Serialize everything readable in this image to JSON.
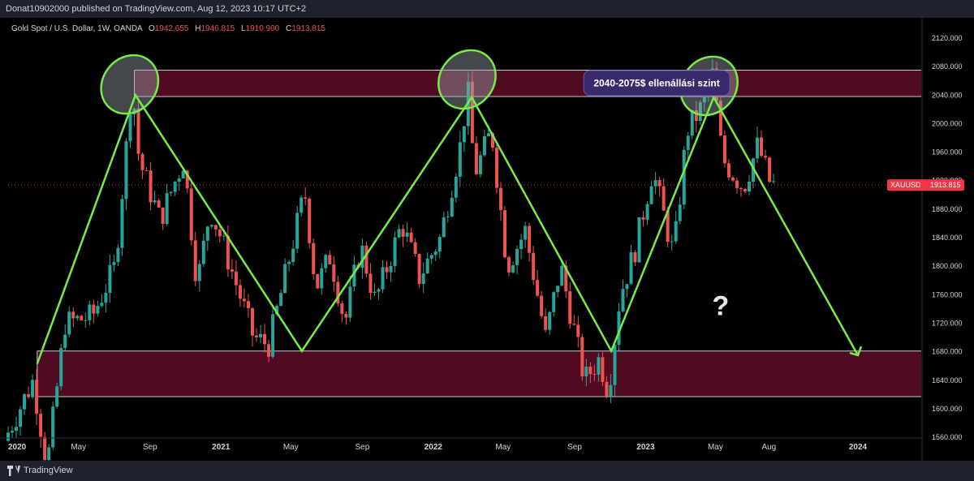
{
  "header": {
    "publisher": "Donat10902000 published on TradingView.com, Aug 12, 2023 10:17 UTC+2"
  },
  "footer": {
    "brand": "TradingView"
  },
  "legend": {
    "symbol": "Gold Spot / U.S. Dollar, 1W, OANDA",
    "o_label": "O",
    "o_value": "1942.655",
    "h_label": "H",
    "h_value": "1946.815",
    "l_label": "L",
    "l_value": "1910.900",
    "c_label": "C",
    "c_value": "1913.815"
  },
  "price_tag": {
    "symbol": "XAUUSD",
    "value": "1913.815",
    "price": 1913.815
  },
  "annotation_text": "2040-2075$ ellenállási szint",
  "question_mark": "?",
  "colors": {
    "background": "#000000",
    "up": "#26a69a",
    "down": "#ef5350",
    "zone_fill": "#5e0d27",
    "trend_line": "#76ee46",
    "price_tag": "#f23645",
    "annotation": "#3a2a6b"
  },
  "chart_data": {
    "type": "candlestick",
    "title": "Gold Spot / U.S. Dollar, 1W, OANDA",
    "ylim": [
      1555,
      2135
    ],
    "y_ticks": [
      {
        "label": "2120.000",
        "value": 2120
      },
      {
        "label": "2080.000",
        "value": 2080
      },
      {
        "label": "2040.000",
        "value": 2040
      },
      {
        "label": "2000.000",
        "value": 2000
      },
      {
        "label": "1960.000",
        "value": 1960
      },
      {
        "label": "1920.000",
        "value": 1920
      },
      {
        "label": "1880.000",
        "value": 1880
      },
      {
        "label": "1840.000",
        "value": 1840
      },
      {
        "label": "1800.000",
        "value": 1800
      },
      {
        "label": "1760.000",
        "value": 1760
      },
      {
        "label": "1720.000",
        "value": 1720
      },
      {
        "label": "1680.000",
        "value": 1680
      },
      {
        "label": "1640.000",
        "value": 1640
      },
      {
        "label": "1600.000",
        "value": 1600
      },
      {
        "label": "1560.000",
        "value": 1560
      }
    ],
    "x_ticks": [
      {
        "label": "2020",
        "date": "2020-01-01"
      },
      {
        "label": "May",
        "date": "2020-05-01"
      },
      {
        "label": "Sep",
        "date": "2020-09-01"
      },
      {
        "label": "2021",
        "date": "2021-01-01"
      },
      {
        "label": "May",
        "date": "2021-05-01"
      },
      {
        "label": "Sep",
        "date": "2021-09-01"
      },
      {
        "label": "2022",
        "date": "2022-01-01"
      },
      {
        "label": "May",
        "date": "2022-05-01"
      },
      {
        "label": "Sep",
        "date": "2022-09-01"
      },
      {
        "label": "2023",
        "date": "2023-01-01"
      },
      {
        "label": "May",
        "date": "2023-05-01"
      },
      {
        "label": "Aug",
        "date": "2023-08-01"
      },
      {
        "label": "2024",
        "date": "2024-01-01"
      }
    ],
    "price_points": [
      [
        "2020-01-01",
        1555
      ],
      [
        "2020-02-20",
        1640
      ],
      [
        "2020-03-15",
        1520
      ],
      [
        "2020-04-15",
        1720
      ],
      [
        "2020-06-01",
        1730
      ],
      [
        "2020-07-10",
        1800
      ],
      [
        "2020-07-30",
        1975
      ],
      [
        "2020-08-08",
        2060
      ],
      [
        "2020-08-20",
        1950
      ],
      [
        "2020-09-25",
        1865
      ],
      [
        "2020-11-05",
        1950
      ],
      [
        "2020-11-28",
        1775
      ],
      [
        "2020-12-20",
        1880
      ],
      [
        "2021-01-08",
        1840
      ],
      [
        "2021-03-05",
        1700
      ],
      [
        "2021-03-31",
        1690
      ],
      [
        "2021-04-25",
        1775
      ],
      [
        "2021-06-01",
        1905
      ],
      [
        "2021-06-20",
        1770
      ],
      [
        "2021-07-15",
        1815
      ],
      [
        "2021-08-09",
        1720
      ],
      [
        "2021-09-05",
        1830
      ],
      [
        "2021-09-30",
        1750
      ],
      [
        "2021-11-15",
        1860
      ],
      [
        "2021-12-15",
        1785
      ],
      [
        "2022-01-20",
        1840
      ],
      [
        "2022-02-25",
        1975
      ],
      [
        "2022-03-08",
        2050
      ],
      [
        "2022-03-20",
        1930
      ],
      [
        "2022-04-18",
        1990
      ],
      [
        "2022-05-15",
        1800
      ],
      [
        "2022-06-15",
        1850
      ],
      [
        "2022-07-20",
        1700
      ],
      [
        "2022-08-15",
        1800
      ],
      [
        "2022-09-25",
        1640
      ],
      [
        "2022-10-20",
        1670
      ],
      [
        "2022-11-05",
        1625
      ],
      [
        "2022-11-25",
        1760
      ],
      [
        "2022-12-20",
        1820
      ],
      [
        "2023-01-20",
        1935
      ],
      [
        "2023-02-25",
        1815
      ],
      [
        "2023-03-20",
        1990
      ],
      [
        "2023-04-12",
        2020
      ],
      [
        "2023-05-04",
        2070
      ],
      [
        "2023-05-20",
        1950
      ],
      [
        "2023-06-25",
        1910
      ],
      [
        "2023-07-20",
        1970
      ],
      [
        "2023-08-11",
        1914
      ]
    ],
    "zones": [
      {
        "from": 2038,
        "to": 2075,
        "start": "2020-08-05",
        "end": "2024-05-01"
      },
      {
        "from": 1617,
        "to": 1681,
        "start": "2020-02-20",
        "end": "2024-05-01"
      }
    ],
    "trend_line": [
      [
        "2020-02-20",
        1663
      ],
      [
        "2020-08-07",
        2040
      ],
      [
        "2021-05-20",
        1681
      ],
      [
        "2022-03-08",
        2037
      ],
      [
        "2022-11-03",
        1681
      ],
      [
        "2023-04-28",
        2037
      ],
      [
        "2024-01-01",
        1675
      ]
    ],
    "arrow_tip": [
      "2024-01-01",
      1675
    ],
    "ellipses": [
      {
        "date": "2020-07-28",
        "price": 2055
      },
      {
        "date": "2022-02-28",
        "price": 2062
      },
      {
        "date": "2023-04-20",
        "price": 2053
      }
    ],
    "annotation": {
      "date": "2023-01-20",
      "price": 2057
    },
    "question_mark_at": {
      "date": "2023-05-10",
      "price": 1745
    }
  }
}
